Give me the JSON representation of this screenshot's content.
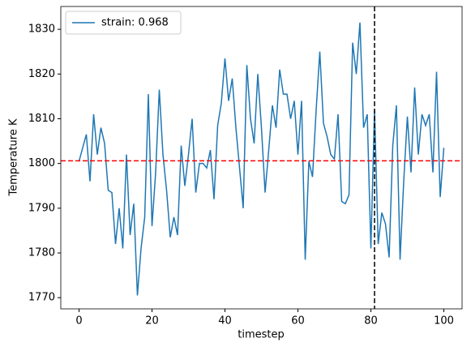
{
  "chart_data": {
    "type": "line",
    "xlabel": "timestep",
    "ylabel": "Temperature K",
    "x": [
      0,
      1,
      2,
      3,
      4,
      5,
      6,
      7,
      8,
      9,
      10,
      11,
      12,
      13,
      14,
      15,
      16,
      17,
      18,
      19,
      20,
      21,
      22,
      23,
      24,
      25,
      26,
      27,
      28,
      29,
      30,
      31,
      32,
      33,
      34,
      35,
      36,
      37,
      38,
      39,
      40,
      41,
      42,
      43,
      44,
      45,
      46,
      47,
      48,
      49,
      50,
      51,
      52,
      53,
      54,
      55,
      56,
      57,
      58,
      59,
      60,
      61,
      62,
      63,
      64,
      65,
      66,
      67,
      68,
      69,
      70,
      71,
      72,
      73,
      74,
      75,
      76,
      77,
      78,
      79,
      80,
      81,
      82,
      83,
      84,
      85,
      86,
      87,
      88,
      89,
      90,
      91,
      92,
      93,
      94,
      95,
      96,
      97,
      98,
      99,
      100
    ],
    "series": [
      {
        "name": "strain: 0.968",
        "color": "#1f77b4",
        "values": [
          1800.5,
          1803.5,
          1806.5,
          1796,
          1811,
          1802,
          1808,
          1804.5,
          1794,
          1793.5,
          1782,
          1790,
          1781,
          1802,
          1784,
          1791,
          1770.5,
          1781,
          1788,
          1815.5,
          1786,
          1798,
          1816.5,
          1802,
          1794,
          1783.5,
          1788,
          1784,
          1804,
          1795,
          1802,
          1810,
          1793.5,
          1800,
          1800,
          1799,
          1803,
          1792,
          1808.5,
          1813.5,
          1823.5,
          1814,
          1819,
          1808,
          1799,
          1790,
          1822,
          1810,
          1804.5,
          1820,
          1808,
          1793.5,
          1803,
          1813,
          1808,
          1821,
          1815.5,
          1815.5,
          1810,
          1814,
          1802,
          1814,
          1778.5,
          1800.5,
          1797,
          1812,
          1825,
          1809,
          1806,
          1802,
          1801,
          1811,
          1791.5,
          1791,
          1793,
          1827,
          1820,
          1831.5,
          1808,
          1811,
          1781,
          1812,
          1782,
          1789,
          1786.5,
          1779,
          1804,
          1813,
          1778.5,
          1796,
          1810.5,
          1798,
          1817,
          1802,
          1811,
          1808.5,
          1811,
          1798,
          1820.5,
          1792.5,
          1803.5
        ]
      }
    ],
    "hlines": [
      {
        "value": 1800.6,
        "color": "red"
      }
    ],
    "vlines": [
      {
        "value": 81,
        "color": "black"
      }
    ],
    "xlim": [
      -5,
      105
    ],
    "xticks": [
      0,
      20,
      40,
      60,
      80,
      100
    ],
    "ylim": [
      1767.5,
      1835.1
    ],
    "yticks": [
      1770,
      1780,
      1790,
      1800,
      1810,
      1820,
      1830
    ],
    "legend": "upper left"
  }
}
